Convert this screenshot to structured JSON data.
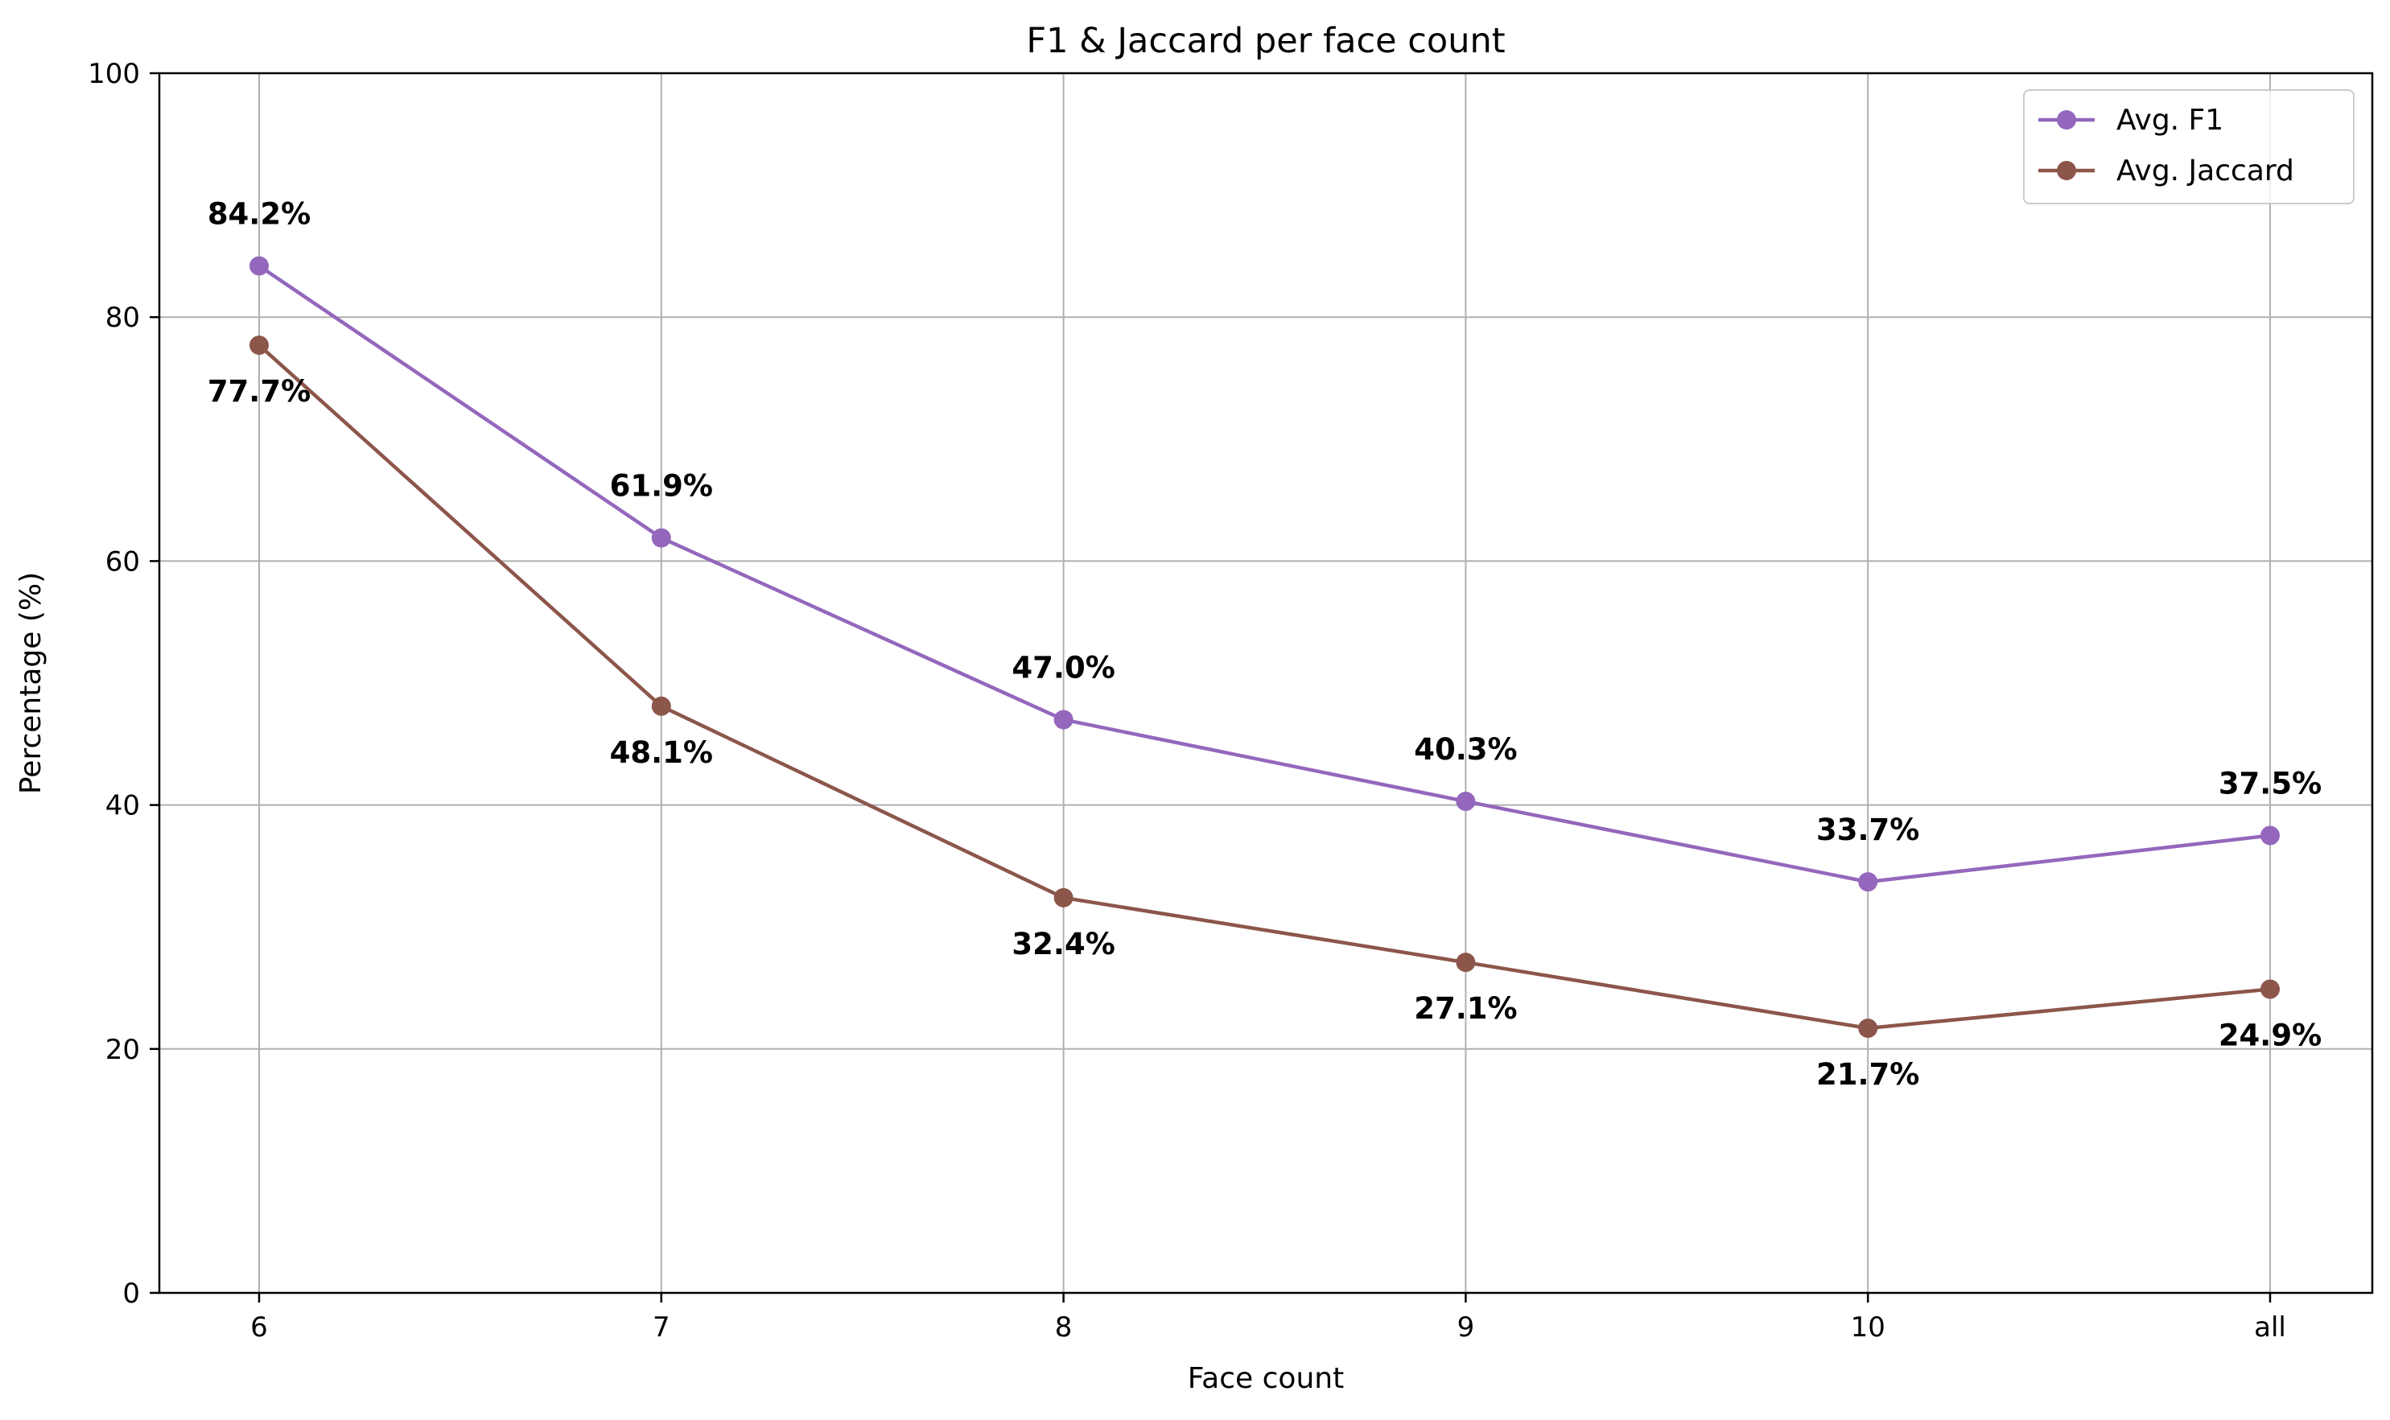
{
  "chart_data": {
    "type": "line",
    "title": "F1 & Jaccard per face count",
    "xlabel": "Face count",
    "ylabel": "Percentage (%)",
    "categories": [
      "6",
      "7",
      "8",
      "9",
      "10",
      "all"
    ],
    "ylim": [
      0,
      100
    ],
    "yticks": [
      0,
      20,
      40,
      60,
      80,
      100
    ],
    "grid": true,
    "legend_position": "top-right",
    "series": [
      {
        "name": "Avg. F1",
        "color": "#9467bd",
        "values": [
          84.2,
          61.9,
          47.0,
          40.3,
          33.7,
          37.5
        ],
        "labels": [
          "84.2%",
          "61.9%",
          "47.0%",
          "40.3%",
          "33.7%",
          "37.5%"
        ],
        "label_position": "above"
      },
      {
        "name": "Avg. Jaccard",
        "color": "#8c564b",
        "values": [
          77.7,
          48.1,
          32.4,
          27.1,
          21.7,
          24.9
        ],
        "labels": [
          "77.7%",
          "48.1%",
          "32.4%",
          "27.1%",
          "21.7%",
          "24.9%"
        ],
        "label_position": "below"
      }
    ]
  }
}
